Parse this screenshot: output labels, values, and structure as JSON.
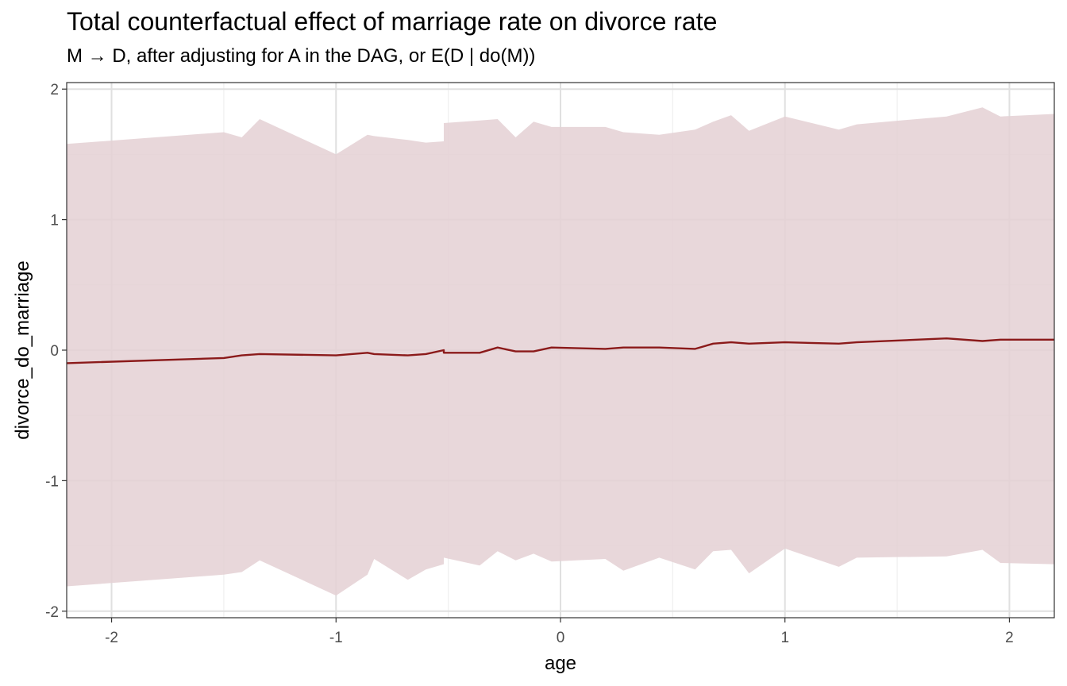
{
  "chart_data": {
    "type": "line",
    "title": "Total counterfactual effect of marriage rate on divorce rate",
    "subtitle": "M → D, after adjusting for A in the DAG, or E(D | do(M))",
    "xlabel": "age",
    "ylabel": "divorce_do_marriage",
    "xlim": [
      -2.2,
      2.2
    ],
    "ylim": [
      -2.05,
      2.05
    ],
    "x_ticks": [
      -2,
      -1,
      0,
      1,
      2
    ],
    "y_ticks": [
      -2,
      -1,
      0,
      1,
      2
    ],
    "grid": true,
    "colors": {
      "line": "#8b1a1a",
      "ribbon": "#e4d0d3",
      "grid_major": "#e0e0e0",
      "grid_minor": "#efefef",
      "panel_border": "#333333"
    },
    "series": [
      {
        "type": "line_with_ribbon",
        "points": [
          {
            "x": -2.2,
            "y": -0.1,
            "lower": -1.81,
            "upper": 1.58
          },
          {
            "x": -1.5,
            "y": -0.06,
            "lower": -1.72,
            "upper": 1.67
          },
          {
            "x": -1.42,
            "y": -0.04,
            "lower": -1.7,
            "upper": 1.63
          },
          {
            "x": -1.34,
            "y": -0.03,
            "lower": -1.61,
            "upper": 1.77
          },
          {
            "x": -1.0,
            "y": -0.04,
            "lower": -1.88,
            "upper": 1.5
          },
          {
            "x": -0.86,
            "y": -0.02,
            "lower": -1.72,
            "upper": 1.65
          },
          {
            "x": -0.83,
            "y": -0.03,
            "lower": -1.6,
            "upper": 1.64
          },
          {
            "x": -0.68,
            "y": -0.04,
            "lower": -1.76,
            "upper": 1.61
          },
          {
            "x": -0.6,
            "y": -0.03,
            "lower": -1.68,
            "upper": 1.59
          },
          {
            "x": -0.52,
            "y": 0.0,
            "lower": -1.64,
            "upper": 1.6
          },
          {
            "x": -0.52,
            "y": -0.02,
            "lower": -1.59,
            "upper": 1.74
          },
          {
            "x": -0.36,
            "y": -0.02,
            "lower": -1.65,
            "upper": 1.76
          },
          {
            "x": -0.28,
            "y": 0.02,
            "lower": -1.54,
            "upper": 1.77
          },
          {
            "x": -0.2,
            "y": -0.01,
            "lower": -1.61,
            "upper": 1.63
          },
          {
            "x": -0.12,
            "y": -0.01,
            "lower": -1.56,
            "upper": 1.75
          },
          {
            "x": -0.04,
            "y": 0.02,
            "lower": -1.62,
            "upper": 1.71
          },
          {
            "x": 0.2,
            "y": 0.01,
            "lower": -1.6,
            "upper": 1.71
          },
          {
            "x": 0.28,
            "y": 0.02,
            "lower": -1.69,
            "upper": 1.67
          },
          {
            "x": 0.44,
            "y": 0.02,
            "lower": -1.59,
            "upper": 1.65
          },
          {
            "x": 0.6,
            "y": 0.01,
            "lower": -1.68,
            "upper": 1.69
          },
          {
            "x": 0.68,
            "y": 0.05,
            "lower": -1.54,
            "upper": 1.75
          },
          {
            "x": 0.76,
            "y": 0.06,
            "lower": -1.53,
            "upper": 1.8
          },
          {
            "x": 0.84,
            "y": 0.05,
            "lower": -1.71,
            "upper": 1.68
          },
          {
            "x": 1.0,
            "y": 0.06,
            "lower": -1.52,
            "upper": 1.79
          },
          {
            "x": 1.24,
            "y": 0.05,
            "lower": -1.66,
            "upper": 1.69
          },
          {
            "x": 1.32,
            "y": 0.06,
            "lower": -1.59,
            "upper": 1.73
          },
          {
            "x": 1.72,
            "y": 0.09,
            "lower": -1.58,
            "upper": 1.79
          },
          {
            "x": 1.88,
            "y": 0.07,
            "lower": -1.53,
            "upper": 1.86
          },
          {
            "x": 1.96,
            "y": 0.08,
            "lower": -1.63,
            "upper": 1.79
          },
          {
            "x": 2.2,
            "y": 0.08,
            "lower": -1.64,
            "upper": 1.81
          }
        ]
      }
    ]
  }
}
